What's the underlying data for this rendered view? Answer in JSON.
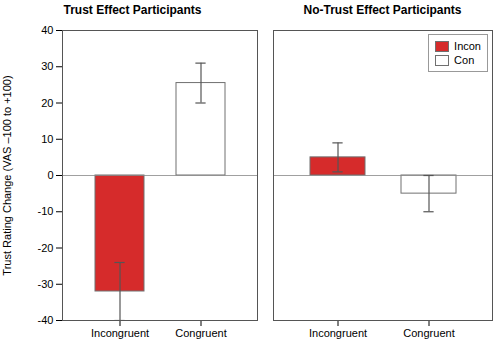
{
  "chart_data": [
    {
      "type": "bar",
      "title": "Trust Effect Participants",
      "ylabel": "Trust Rating Change (VAS –100 to +100)",
      "categories": [
        "Incongruent",
        "Congruent"
      ],
      "series": [
        {
          "name": "Incon",
          "color": "#D62B2B",
          "values": [
            -32,
            null
          ],
          "errors": [
            8,
            null
          ]
        },
        {
          "name": "Con",
          "color": "#FFFFFF",
          "values": [
            null,
            25.5
          ],
          "errors": [
            null,
            5.5
          ]
        }
      ],
      "ylim": [
        -40,
        40
      ],
      "yticks": [
        -40,
        -30,
        -20,
        -10,
        0,
        10,
        20,
        30,
        40
      ],
      "grid": false
    },
    {
      "type": "bar",
      "title": "No-Trust Effect Participants",
      "categories": [
        "Incongruent",
        "Congruent"
      ],
      "series": [
        {
          "name": "Incon",
          "color": "#D62B2B",
          "values": [
            5,
            null
          ],
          "errors": [
            4,
            null
          ]
        },
        {
          "name": "Con",
          "color": "#FFFFFF",
          "values": [
            null,
            -5
          ],
          "errors": [
            null,
            5
          ]
        }
      ],
      "ylim": [
        -40,
        40
      ],
      "yticks": [
        -40,
        -30,
        -20,
        -10,
        0,
        10,
        20,
        30,
        40
      ],
      "grid": false,
      "tick_labels": "x",
      "legend": "upper right"
    }
  ]
}
